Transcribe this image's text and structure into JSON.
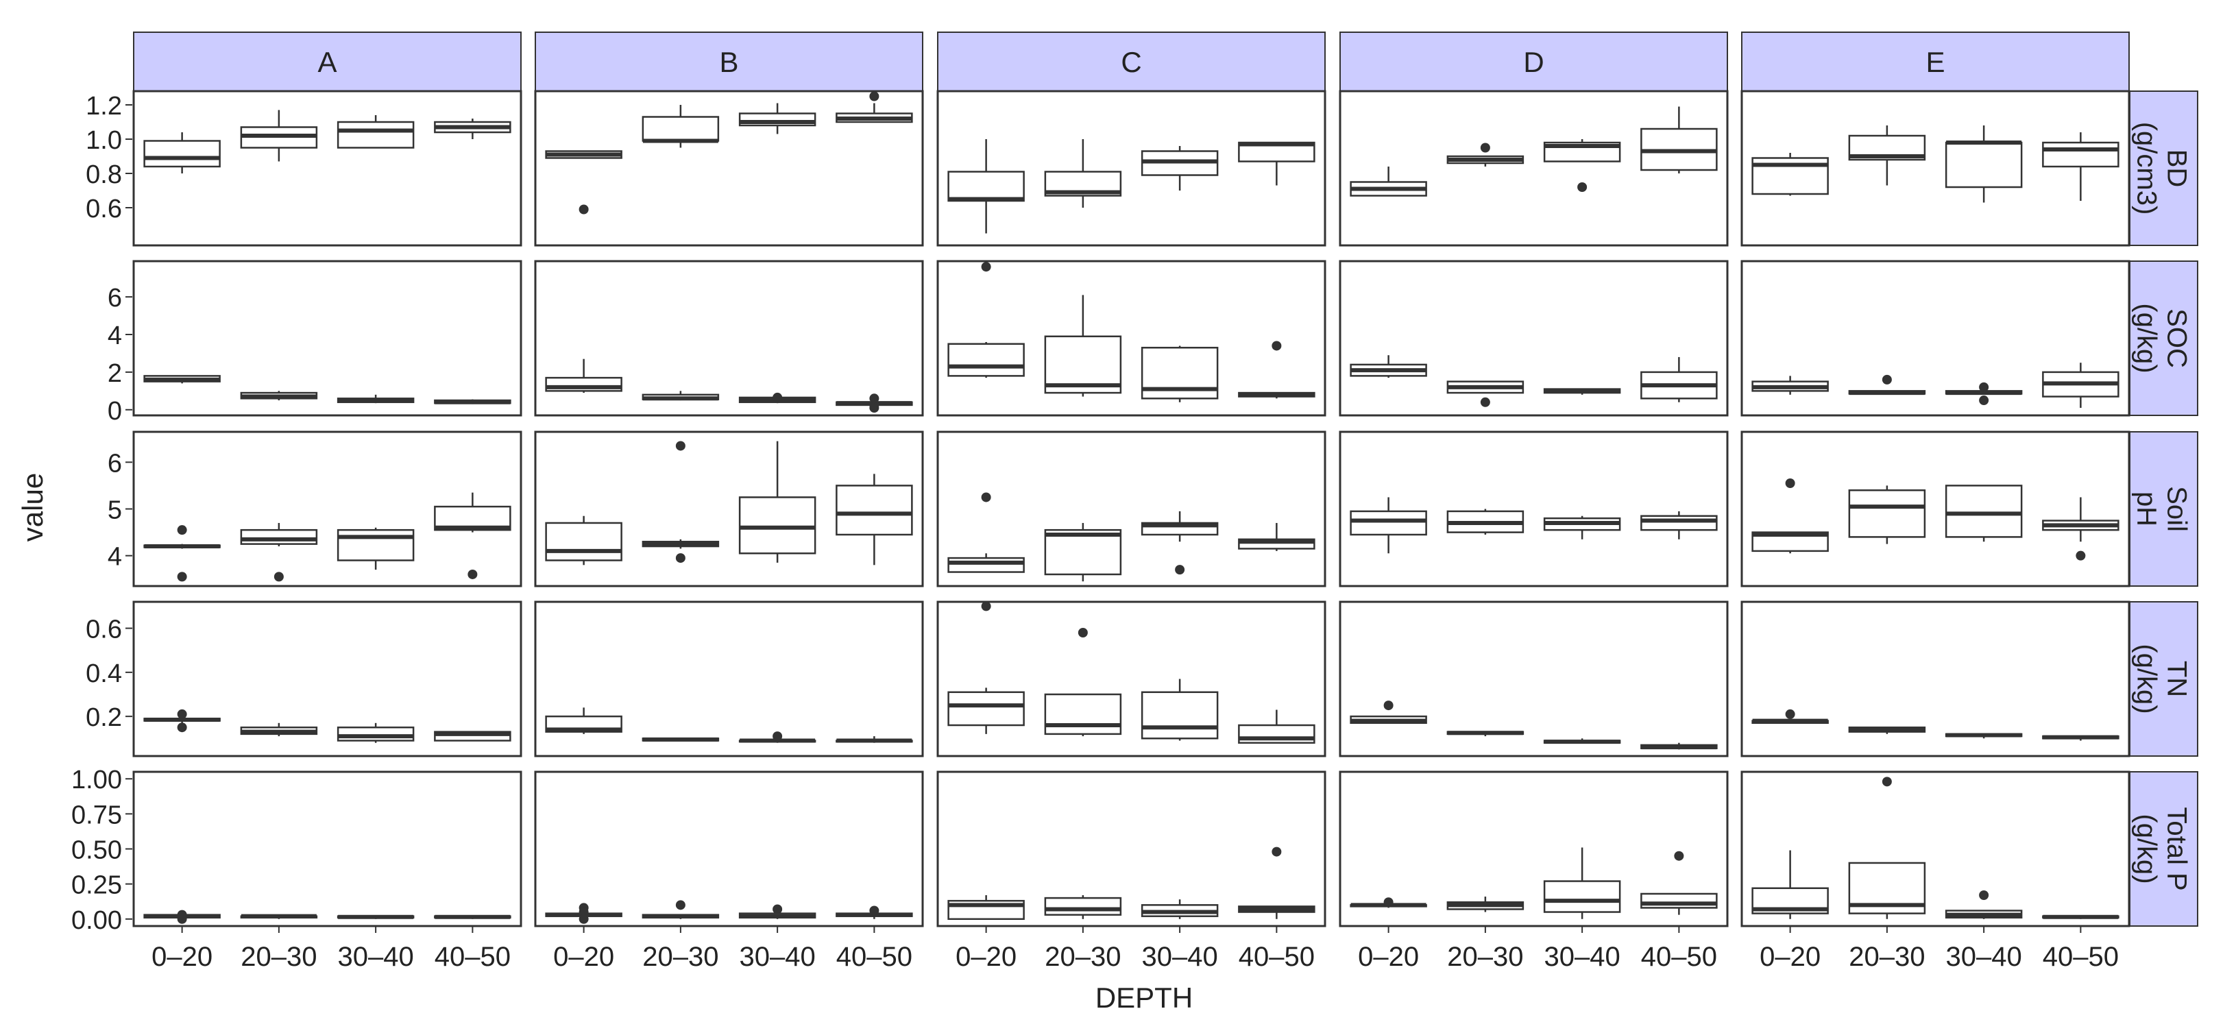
{
  "chart_data": {
    "type": "boxplot",
    "xlabel": "DEPTH",
    "ylabel": "value",
    "categories": [
      "0–20",
      "20–30",
      "30–40",
      "40–50"
    ],
    "colors": {
      "strip": "#ccccff",
      "box": "#333333",
      "point": "#333333"
    },
    "facet_cols": [
      {
        "key": "A",
        "label": "A"
      },
      {
        "key": "B",
        "label": "B"
      },
      {
        "key": "C",
        "label": "C"
      },
      {
        "key": "D",
        "label": "D"
      },
      {
        "key": "E",
        "label": "E"
      }
    ],
    "facet_rows": [
      {
        "key": "BD",
        "label": [
          "BD",
          "(g/cm3)"
        ],
        "ylim": [
          0.38,
          1.28
        ],
        "ticks": [
          0.6,
          0.8,
          1.0,
          1.2
        ],
        "tick_labels": [
          "0.6",
          "0.8",
          "1.0",
          "1.2"
        ]
      },
      {
        "key": "SOC",
        "label": [
          "SOC",
          "(g/kg)"
        ],
        "ylim": [
          -0.3,
          7.9
        ],
        "ticks": [
          0,
          2,
          4,
          6
        ],
        "tick_labels": [
          "0",
          "2",
          "4",
          "6"
        ]
      },
      {
        "key": "pH",
        "label": [
          "Soil",
          "pH"
        ],
        "ylim": [
          3.35,
          6.65
        ],
        "ticks": [
          4,
          5,
          6
        ],
        "tick_labels": [
          "4",
          "5",
          "6"
        ]
      },
      {
        "key": "TN",
        "label": [
          "TN",
          "(g/kg)"
        ],
        "ylim": [
          0.02,
          0.72
        ],
        "ticks": [
          0.2,
          0.4,
          0.6
        ],
        "tick_labels": [
          "0.2",
          "0.4",
          "0.6"
        ]
      },
      {
        "key": "TP",
        "label": [
          "Total P",
          "(g/kg)"
        ],
        "ylim": [
          -0.05,
          1.05
        ],
        "ticks": [
          0.0,
          0.25,
          0.5,
          0.75,
          1.0
        ],
        "tick_labels": [
          "0.00",
          "0.25",
          "0.50",
          "0.75",
          "1.00"
        ]
      }
    ],
    "boxes": {
      "BD": {
        "A": [
          [
            0.8,
            0.84,
            0.89,
            0.99,
            1.04,
            []
          ],
          [
            0.87,
            0.95,
            1.02,
            1.07,
            1.17,
            []
          ],
          [
            0.95,
            0.95,
            1.05,
            1.1,
            1.14,
            []
          ],
          [
            1.0,
            1.04,
            1.07,
            1.1,
            1.12,
            []
          ]
        ],
        "B": [
          [
            0.89,
            0.89,
            0.91,
            0.93,
            0.93,
            [
              0.59
            ]
          ],
          [
            0.95,
            0.99,
            0.99,
            1.13,
            1.2,
            []
          ],
          [
            1.03,
            1.08,
            1.1,
            1.15,
            1.21,
            []
          ],
          [
            1.1,
            1.1,
            1.12,
            1.15,
            1.21,
            [
              1.25
            ]
          ]
        ],
        "C": [
          [
            0.45,
            0.64,
            0.65,
            0.81,
            1.0,
            []
          ],
          [
            0.6,
            0.67,
            0.69,
            0.81,
            1.0,
            []
          ],
          [
            0.7,
            0.79,
            0.87,
            0.93,
            0.96,
            []
          ],
          [
            0.73,
            0.87,
            0.97,
            0.98,
            0.98,
            []
          ]
        ],
        "D": [
          [
            0.67,
            0.67,
            0.71,
            0.75,
            0.84,
            []
          ],
          [
            0.84,
            0.86,
            0.88,
            0.9,
            0.9,
            [
              0.95
            ]
          ],
          [
            0.87,
            0.87,
            0.96,
            0.98,
            1.0,
            [
              0.72
            ]
          ],
          [
            0.8,
            0.82,
            0.93,
            1.06,
            1.19,
            []
          ]
        ],
        "E": [
          [
            0.67,
            0.68,
            0.85,
            0.89,
            0.92,
            []
          ],
          [
            0.73,
            0.88,
            0.9,
            1.02,
            1.08,
            []
          ],
          [
            0.63,
            0.72,
            0.98,
            0.98,
            1.08,
            []
          ],
          [
            0.64,
            0.84,
            0.94,
            0.98,
            1.04,
            []
          ]
        ]
      },
      "SOC": {
        "A": [
          [
            1.4,
            1.5,
            1.6,
            1.8,
            1.8,
            []
          ],
          [
            0.5,
            0.6,
            0.7,
            0.9,
            1.0,
            []
          ],
          [
            0.35,
            0.4,
            0.5,
            0.6,
            0.8,
            []
          ],
          [
            0.3,
            0.35,
            0.4,
            0.5,
            0.55,
            []
          ]
        ],
        "B": [
          [
            0.9,
            1.0,
            1.2,
            1.7,
            2.7,
            []
          ],
          [
            0.5,
            0.55,
            0.6,
            0.8,
            1.0,
            []
          ],
          [
            0.35,
            0.4,
            0.5,
            0.65,
            0.75,
            [
              0.65
            ]
          ],
          [
            0.2,
            0.25,
            0.35,
            0.4,
            0.4,
            [
              0.1,
              0.25,
              0.6
            ]
          ]
        ],
        "C": [
          [
            1.7,
            1.8,
            2.3,
            3.5,
            3.6,
            [
              7.6
            ]
          ],
          [
            0.7,
            0.9,
            1.3,
            3.9,
            6.1,
            []
          ],
          [
            0.4,
            0.6,
            1.1,
            3.3,
            3.4,
            []
          ],
          [
            0.6,
            0.7,
            0.8,
            0.9,
            0.9,
            [
              3.4
            ]
          ]
        ],
        "D": [
          [
            1.7,
            1.8,
            2.1,
            2.4,
            2.9,
            []
          ],
          [
            0.9,
            0.9,
            1.2,
            1.5,
            1.5,
            [
              0.4
            ]
          ],
          [
            0.8,
            0.9,
            1.0,
            1.1,
            1.1,
            []
          ],
          [
            0.4,
            0.6,
            1.3,
            2.0,
            2.8,
            []
          ]
        ],
        "E": [
          [
            0.8,
            1.0,
            1.2,
            1.5,
            1.8,
            []
          ],
          [
            0.8,
            0.85,
            0.9,
            1.0,
            1.0,
            [
              1.6
            ]
          ],
          [
            0.8,
            0.85,
            0.9,
            1.0,
            1.0,
            [
              0.5,
              1.2
            ]
          ],
          [
            0.1,
            0.7,
            1.4,
            2.0,
            2.5,
            []
          ]
        ]
      },
      "pH": {
        "A": [
          [
            4.15,
            4.18,
            4.2,
            4.22,
            4.25,
            [
              4.55,
              3.55
            ]
          ],
          [
            4.2,
            4.25,
            4.35,
            4.55,
            4.7,
            [
              3.55
            ]
          ],
          [
            3.7,
            3.9,
            4.4,
            4.55,
            4.6,
            []
          ],
          [
            4.5,
            4.55,
            4.6,
            5.05,
            5.35,
            [
              3.6
            ]
          ]
        ],
        "B": [
          [
            3.8,
            3.9,
            4.1,
            4.7,
            4.85,
            []
          ],
          [
            4.15,
            4.2,
            4.25,
            4.3,
            4.35,
            [
              6.35,
              3.95
            ]
          ],
          [
            3.85,
            4.05,
            4.6,
            5.25,
            6.45,
            []
          ],
          [
            3.8,
            4.45,
            4.9,
            5.5,
            5.75,
            []
          ]
        ],
        "C": [
          [
            3.65,
            3.65,
            3.85,
            3.95,
            4.05,
            [
              5.25
            ]
          ],
          [
            3.45,
            3.6,
            4.45,
            4.55,
            4.7,
            []
          ],
          [
            4.3,
            4.45,
            4.65,
            4.7,
            4.95,
            [
              3.7
            ]
          ],
          [
            4.1,
            4.15,
            4.3,
            4.35,
            4.7,
            []
          ]
        ],
        "D": [
          [
            4.05,
            4.45,
            4.75,
            4.95,
            5.25,
            []
          ],
          [
            4.45,
            4.5,
            4.7,
            4.95,
            5.0,
            []
          ],
          [
            4.35,
            4.55,
            4.7,
            4.8,
            4.85,
            []
          ],
          [
            4.35,
            4.55,
            4.75,
            4.85,
            4.95,
            []
          ]
        ],
        "E": [
          [
            4.05,
            4.1,
            4.45,
            4.5,
            4.5,
            [
              5.55
            ]
          ],
          [
            4.25,
            4.4,
            5.05,
            5.4,
            5.5,
            []
          ],
          [
            4.3,
            4.4,
            4.9,
            5.5,
            5.5,
            []
          ],
          [
            4.3,
            4.55,
            4.65,
            4.75,
            5.25,
            [
              4.0
            ]
          ]
        ]
      },
      "TN": {
        "A": [
          [
            0.17,
            0.18,
            0.185,
            0.19,
            0.19,
            [
              0.21,
              0.15
            ]
          ],
          [
            0.11,
            0.12,
            0.13,
            0.15,
            0.17,
            []
          ],
          [
            0.08,
            0.09,
            0.11,
            0.15,
            0.17,
            []
          ],
          [
            0.09,
            0.09,
            0.12,
            0.13,
            0.13,
            []
          ]
        ],
        "B": [
          [
            0.12,
            0.13,
            0.14,
            0.2,
            0.24,
            []
          ],
          [
            0.09,
            0.09,
            0.095,
            0.1,
            0.1,
            []
          ],
          [
            0.08,
            0.085,
            0.09,
            0.09,
            0.09,
            [
              0.11
            ]
          ],
          [
            0.08,
            0.085,
            0.09,
            0.09,
            0.11,
            []
          ]
        ],
        "C": [
          [
            0.12,
            0.16,
            0.25,
            0.31,
            0.33,
            [
              0.7
            ]
          ],
          [
            0.11,
            0.12,
            0.16,
            0.3,
            0.3,
            [
              0.58
            ]
          ],
          [
            0.09,
            0.1,
            0.15,
            0.31,
            0.37,
            []
          ],
          [
            0.08,
            0.08,
            0.1,
            0.16,
            0.23,
            []
          ]
        ],
        "D": [
          [
            0.17,
            0.17,
            0.18,
            0.2,
            0.2,
            [
              0.25
            ]
          ],
          [
            0.11,
            0.12,
            0.125,
            0.13,
            0.13,
            []
          ],
          [
            0.08,
            0.08,
            0.085,
            0.09,
            0.1,
            []
          ],
          [
            0.05,
            0.055,
            0.06,
            0.07,
            0.08,
            []
          ]
        ],
        "E": [
          [
            0.17,
            0.17,
            0.18,
            0.18,
            0.18,
            [
              0.21
            ]
          ],
          [
            0.12,
            0.13,
            0.14,
            0.15,
            0.15,
            []
          ],
          [
            0.1,
            0.11,
            0.115,
            0.12,
            0.12,
            []
          ],
          [
            0.09,
            0.1,
            0.105,
            0.11,
            0.11,
            []
          ]
        ]
      },
      "TP": {
        "A": [
          [
            0.0,
            0.01,
            0.02,
            0.03,
            0.04,
            [
              0.0,
              0.03
            ]
          ],
          [
            0.0,
            0.01,
            0.02,
            0.02,
            0.02,
            []
          ],
          [
            0.0,
            0.01,
            0.015,
            0.02,
            0.02,
            []
          ],
          [
            0.0,
            0.01,
            0.015,
            0.02,
            0.02,
            []
          ]
        ],
        "B": [
          [
            0.0,
            0.02,
            0.03,
            0.04,
            0.04,
            [
              0.08,
              0.05,
              0.0
            ]
          ],
          [
            0.0,
            0.01,
            0.02,
            0.03,
            0.03,
            [
              0.1
            ]
          ],
          [
            0.0,
            0.01,
            0.02,
            0.04,
            0.05,
            [
              0.07
            ]
          ],
          [
            0.0,
            0.02,
            0.03,
            0.04,
            0.04,
            [
              0.06
            ]
          ]
        ],
        "C": [
          [
            0.0,
            0.0,
            0.1,
            0.13,
            0.17,
            []
          ],
          [
            0.0,
            0.03,
            0.07,
            0.15,
            0.17,
            []
          ],
          [
            0.0,
            0.02,
            0.05,
            0.1,
            0.14,
            []
          ],
          [
            0.0,
            0.05,
            0.07,
            0.09,
            0.09,
            [
              0.48
            ]
          ]
        ],
        "D": [
          [
            0.08,
            0.09,
            0.1,
            0.1,
            0.1,
            [
              0.12
            ]
          ],
          [
            0.05,
            0.07,
            0.1,
            0.12,
            0.16,
            []
          ],
          [
            0.0,
            0.05,
            0.13,
            0.27,
            0.51,
            []
          ],
          [
            0.03,
            0.08,
            0.11,
            0.18,
            0.18,
            [
              0.45
            ]
          ]
        ],
        "E": [
          [
            0.0,
            0.04,
            0.07,
            0.22,
            0.49,
            []
          ],
          [
            0.0,
            0.04,
            0.1,
            0.4,
            0.4,
            [
              0.98
            ]
          ],
          [
            0.0,
            0.01,
            0.03,
            0.06,
            0.06,
            [
              0.17
            ]
          ],
          [
            0.0,
            0.01,
            0.015,
            0.02,
            0.02,
            []
          ]
        ]
      }
    }
  }
}
